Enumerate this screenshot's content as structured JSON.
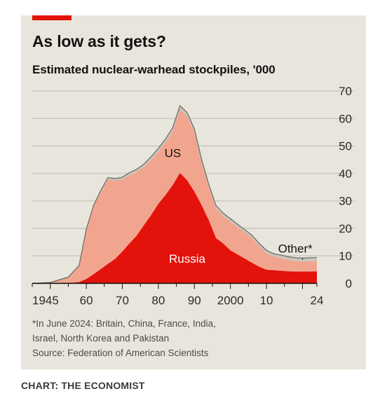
{
  "header": {
    "title": "As low as it gets?",
    "subtitle": "Estimated nuclear-warhead stockpiles, '000"
  },
  "footer": {
    "footnote_lines": [
      "*In June 2024: Britain, China, France, India,",
      "Israel, North Korea and Pakistan"
    ],
    "source": "Source: Federation of American Scientists",
    "credit": "CHART: THE ECONOMIST"
  },
  "colors": {
    "russia": "#e3120b",
    "us": "#f2a58e",
    "other": "#c9c6bc",
    "accent": "#e3120b",
    "background": "#e8e6dc"
  },
  "chart_data": {
    "type": "area",
    "stacked": true,
    "x_tick_labels": [
      "1945",
      "60",
      "70",
      "80",
      "90",
      "2000",
      "10",
      "24"
    ],
    "x_tick_values": [
      1945,
      1960,
      1970,
      1980,
      1990,
      2000,
      2010,
      2024
    ],
    "y_tick_labels": [
      "70",
      "60",
      "50",
      "40",
      "30",
      "20",
      "10",
      "0"
    ],
    "y_tick_values": [
      70,
      60,
      50,
      40,
      30,
      20,
      10,
      0
    ],
    "ylim": [
      0,
      70
    ],
    "xlim": [
      1945,
      2024
    ],
    "grid": true,
    "y_axis_side": "right",
    "x": [
      1945,
      1950,
      1955,
      1958,
      1960,
      1962,
      1964,
      1966,
      1968,
      1970,
      1972,
      1974,
      1976,
      1978,
      1980,
      1982,
      1984,
      1986,
      1988,
      1990,
      1992,
      1994,
      1996,
      1998,
      2000,
      2002,
      2004,
      2006,
      2008,
      2010,
      2012,
      2014,
      2016,
      2018,
      2020,
      2022,
      2024
    ],
    "series": [
      {
        "name": "Russia",
        "values": [
          0,
          0,
          0.1,
          0.5,
          1.6,
          3.3,
          5.2,
          7.1,
          8.9,
          11.6,
          14.6,
          17.4,
          21.2,
          24.9,
          29.0,
          32.2,
          35.8,
          40.2,
          37.5,
          33.4,
          28.5,
          23.0,
          16.5,
          14.5,
          12.0,
          10.5,
          9.0,
          7.5,
          6.0,
          5.0,
          4.8,
          4.6,
          4.4,
          4.3,
          4.3,
          4.3,
          4.4
        ]
      },
      {
        "name": "US",
        "values": [
          0,
          0.3,
          2.1,
          5.8,
          17.8,
          24.6,
          28.0,
          30.8,
          28.5,
          26.2,
          24.8,
          23.1,
          21.1,
          20.1,
          18.9,
          19.2,
          19.6,
          23.1,
          23.3,
          21.5,
          15.5,
          12.0,
          10.8,
          10.0,
          10.5,
          10.0,
          9.5,
          9.0,
          7.5,
          6.0,
          5.0,
          4.6,
          4.2,
          3.8,
          3.7,
          3.7,
          3.7
        ]
      },
      {
        "name": "Other*",
        "values": [
          0,
          0,
          0.1,
          0.2,
          0.3,
          0.4,
          0.5,
          0.6,
          0.7,
          0.8,
          0.9,
          1.0,
          1.1,
          1.1,
          1.2,
          1.2,
          1.3,
          1.3,
          1.3,
          1.2,
          1.1,
          1.0,
          1.0,
          1.0,
          1.0,
          1.0,
          1.0,
          1.0,
          1.0,
          1.0,
          1.0,
          1.1,
          1.1,
          1.2,
          1.2,
          1.3,
          1.3
        ]
      }
    ]
  }
}
